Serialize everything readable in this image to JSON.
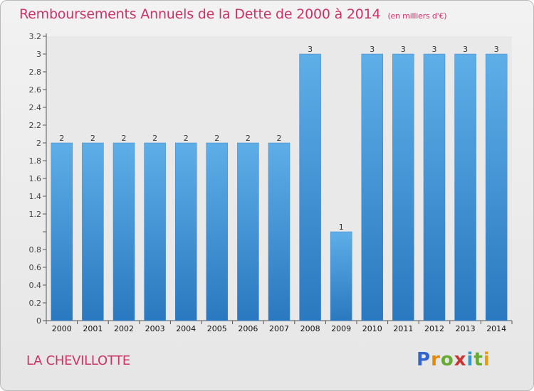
{
  "title": {
    "main": "Remboursements Annuels de la Dette de 2000 à 2014",
    "unit": "(en milliers d'€)"
  },
  "commune": "LA CHEVILLOTTE",
  "logo": {
    "letters": [
      "P",
      "r",
      "o",
      "x",
      "i",
      "t",
      "i"
    ],
    "colors": [
      "#3366cc",
      "#e68a00",
      "#66aa33",
      "#cc3333",
      "#3399cc",
      "#66aa33",
      "#e6a000"
    ]
  },
  "colors": {
    "bar": "#4f9fdf",
    "bar_dark": "#2f7fc6",
    "accent": "#cc3366"
  },
  "chart_data": {
    "type": "bar",
    "title": "Remboursements Annuels de la Dette de 2000 à 2014",
    "ylabel": "(en milliers d'€)",
    "xlabel": "",
    "categories": [
      "2000",
      "2001",
      "2002",
      "2003",
      "2004",
      "2005",
      "2006",
      "2007",
      "2008",
      "2009",
      "2010",
      "2011",
      "2012",
      "2013",
      "2014"
    ],
    "values": [
      2,
      2,
      2,
      2,
      2,
      2,
      2,
      2,
      3,
      1,
      3,
      3,
      3,
      3,
      3
    ],
    "value_labels": [
      "2",
      "2",
      "2",
      "2",
      "2",
      "2",
      "2",
      "2",
      "3",
      "1",
      "3",
      "3",
      "3",
      "3",
      "3"
    ],
    "ylim": [
      0,
      3.2
    ],
    "y_ticks": [
      0,
      0.2,
      0.4,
      0.6,
      0.8,
      1,
      1.2,
      1.4,
      1.6,
      1.8,
      2,
      2.2,
      2.4,
      2.6,
      2.8,
      3,
      3.2
    ],
    "y_tick_labels": [
      "0",
      "0.2",
      "0.4",
      "0.6",
      "0.8",
      "",
      "1.2",
      "1.4",
      "1.6",
      "1.8",
      "2",
      "2.2",
      "2.4",
      "2.6",
      "2.8",
      "3",
      "3.2"
    ],
    "grid": false
  }
}
